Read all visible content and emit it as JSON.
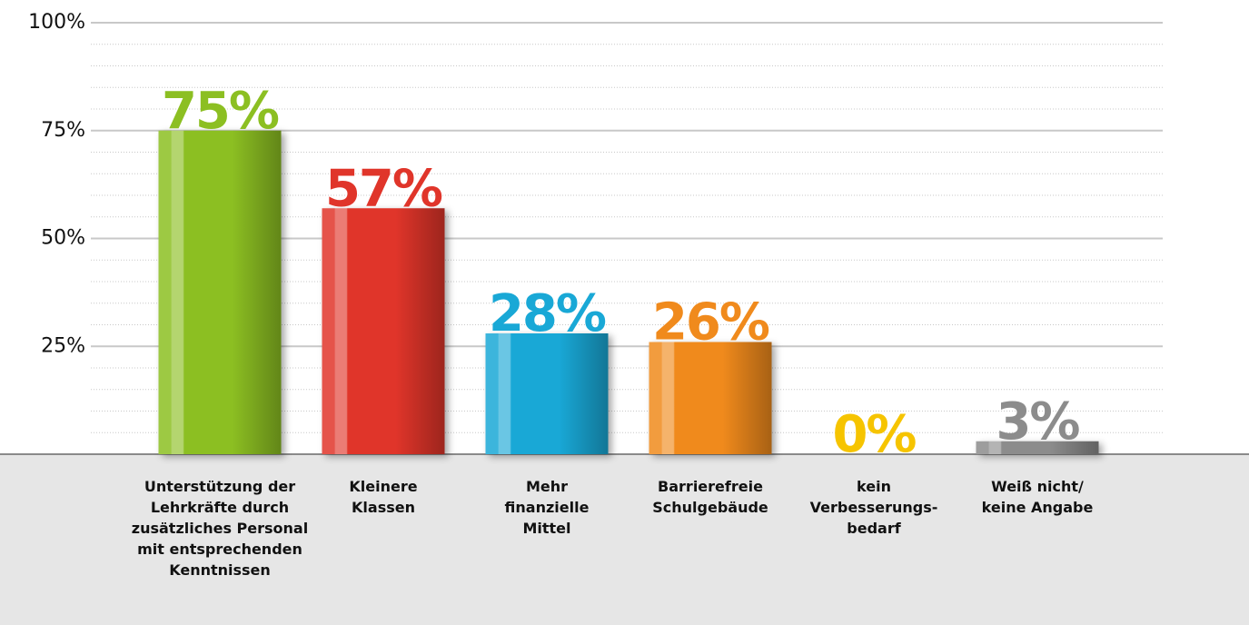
{
  "chart_data": {
    "type": "bar",
    "categories": [
      "Unterstützung der\nLehrkräfte durch\nzusätzliches Personal\nmit entsprechenden\nKenntnissen",
      "Kleinere\nKlassen",
      "Mehr\nfinanzielle\nMittel",
      "Barrierefreie\nSchulgebäude",
      "kein\nVerbesserungs-\nbedarf",
      "Weiß nicht/\nkeine Angabe"
    ],
    "values": [
      75,
      57,
      28,
      26,
      0,
      3
    ],
    "value_labels": [
      "75%",
      "57%",
      "28%",
      "26%",
      "0%",
      "3%"
    ],
    "colors": [
      "#8cbf22",
      "#e0352a",
      "#19a8d6",
      "#f08a1c",
      "#f6c400",
      "#8c8c8c"
    ],
    "ylim": [
      0,
      100
    ],
    "yticks": [
      {
        "value": 25,
        "label": "25%"
      },
      {
        "value": 50,
        "label": "50%"
      },
      {
        "value": 75,
        "label": "75%"
      },
      {
        "value": 100,
        "label": "100%"
      }
    ],
    "yminorticks": [
      5,
      10,
      15,
      20,
      30,
      35,
      40,
      45,
      55,
      60,
      65,
      70,
      80,
      85,
      90,
      95
    ],
    "grid": true
  }
}
